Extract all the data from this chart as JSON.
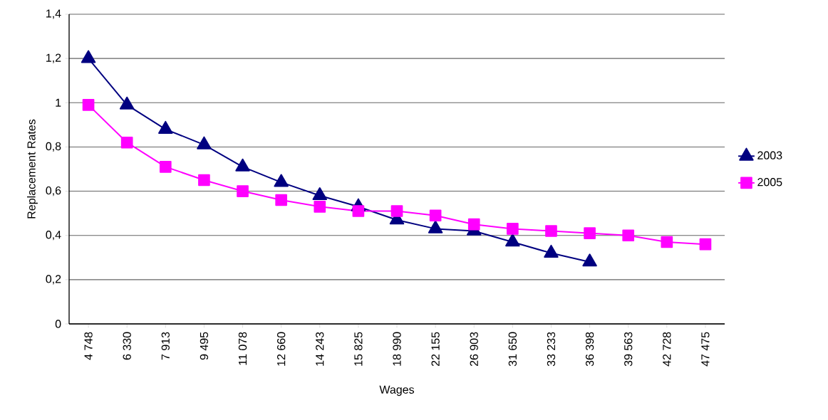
{
  "chart_data": {
    "type": "line",
    "xlabel": "Wages",
    "ylabel": "Replacement Rates",
    "categories": [
      "4 748",
      "6 330",
      "7 913",
      "9 495",
      "11 078",
      "12 660",
      "14 243",
      "15 825",
      "18 990",
      "22 155",
      "26 903",
      "31 650",
      "33 233",
      "36 398",
      "39 563",
      "42 728",
      "47 475"
    ],
    "series": [
      {
        "name": "2003",
        "color": "#000080",
        "marker": "triangle",
        "values": [
          1.2,
          0.99,
          0.88,
          0.81,
          0.71,
          0.64,
          0.58,
          0.53,
          0.47,
          0.43,
          0.42,
          0.37,
          0.32,
          0.28,
          null,
          null,
          null
        ]
      },
      {
        "name": "2005",
        "color": "#ff00ff",
        "marker": "square",
        "values": [
          0.99,
          0.82,
          0.71,
          0.65,
          0.6,
          0.56,
          0.53,
          0.51,
          0.51,
          0.49,
          0.45,
          0.43,
          0.42,
          0.41,
          0.4,
          0.37,
          0.36
        ]
      }
    ],
    "ylim": [
      0,
      1.4
    ],
    "yticks": [
      0,
      {
        "value": 0.2,
        "label": "0,2"
      },
      {
        "value": 0.4,
        "label": "0,4"
      },
      {
        "value": 0.6,
        "label": "0,6"
      },
      {
        "value": 0.8,
        "label": "0,8"
      },
      1,
      {
        "value": 1.2,
        "label": "1,2"
      },
      {
        "value": 1.4,
        "label": "1,4"
      }
    ],
    "grid": "y",
    "legend": "right",
    "line_style": "solid"
  }
}
